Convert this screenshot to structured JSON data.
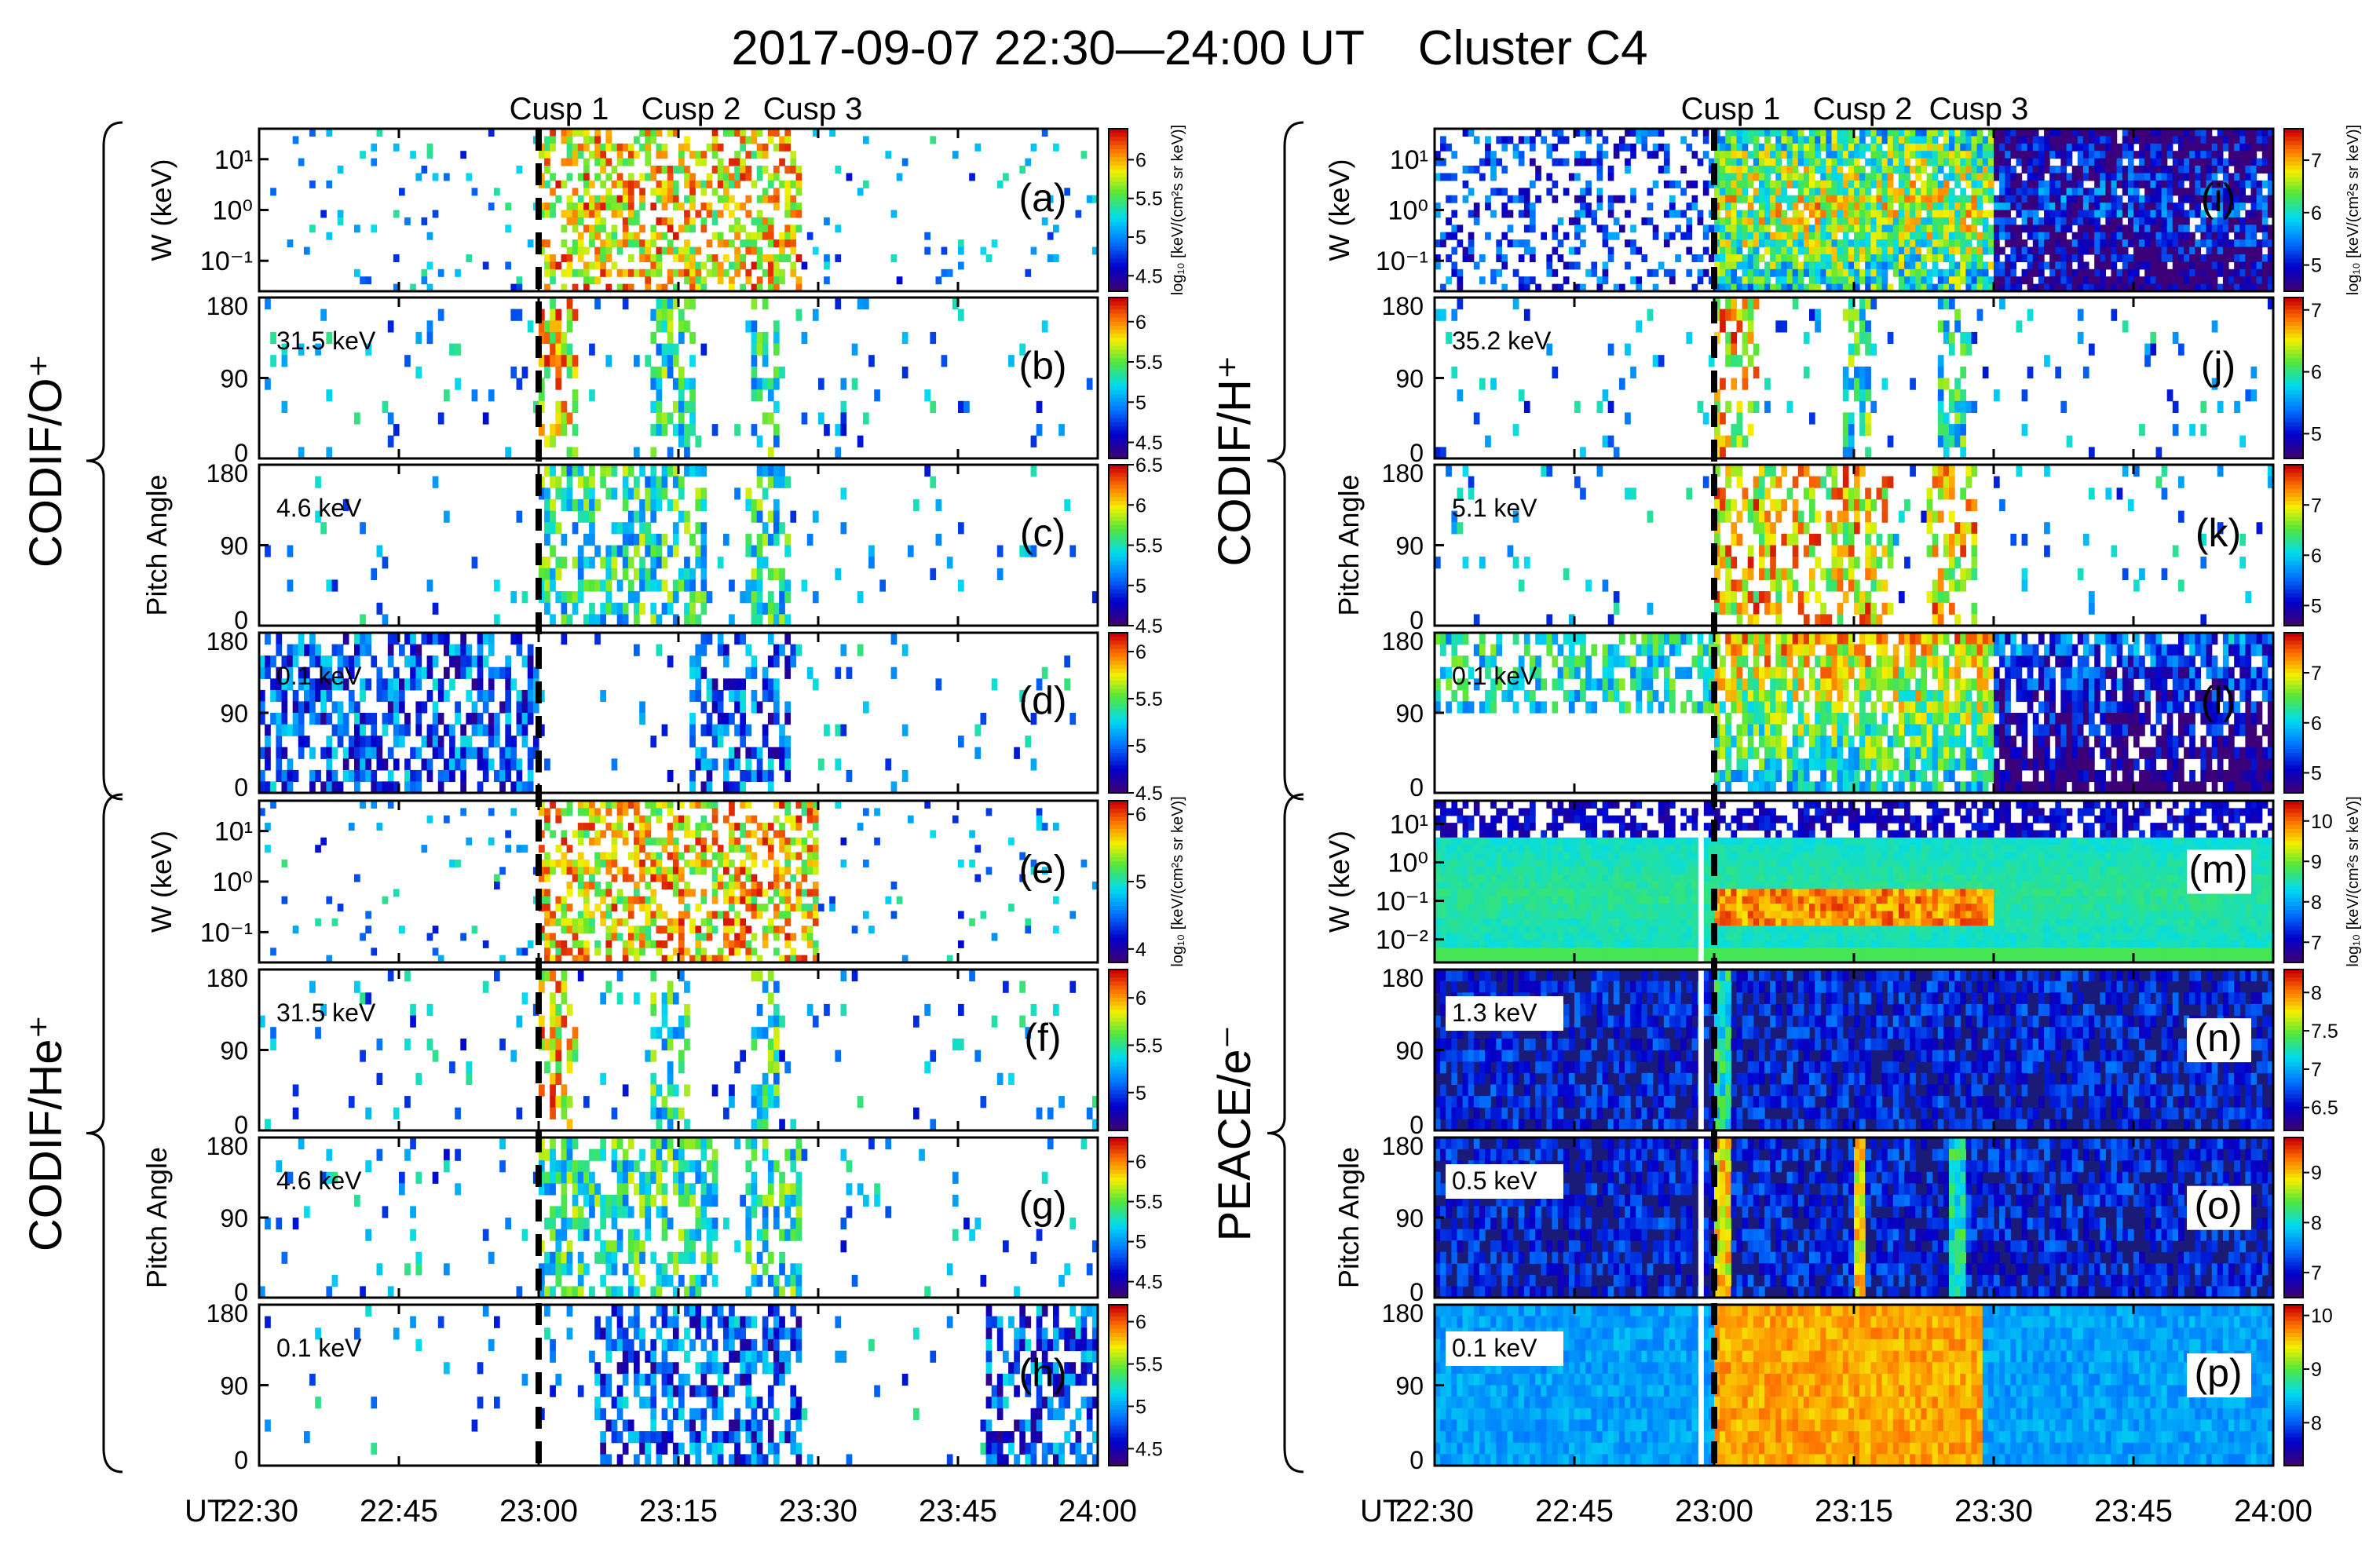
{
  "figure": {
    "title": "2017-09-07 22:30—24:00 UT    Cluster C4",
    "time_axis": {
      "prefix": "UT",
      "ticks": [
        "22:30",
        "22:45",
        "23:00",
        "23:15",
        "23:30",
        "23:45",
        "24:00"
      ],
      "range_minutes": [
        0,
        90
      ]
    },
    "cusps": [
      {
        "label": "Cusp 1",
        "time_minutes": 30,
        "boundary": true
      },
      {
        "label": "Cusp 2",
        "time_minutes": 45
      },
      {
        "label": "Cusp 3",
        "time_minutes": 56
      }
    ],
    "colorbar_label": "log₁₀ [keV/(cm²s sr keV)]",
    "colorbar_label_alt": "log10 [keV/(cm2 s sr keV)]",
    "energy_axis_label": "W (keV)",
    "pitch_axis_label": "Pitch Angle",
    "pa_ticks": [
      "0",
      "90",
      "180"
    ],
    "brackets": [
      {
        "label": "CODIF/O⁺",
        "column": "left",
        "panels": [
          "a",
          "b",
          "c",
          "d"
        ]
      },
      {
        "label": "CODIF/He⁺",
        "column": "left",
        "panels": [
          "e",
          "f",
          "g",
          "h"
        ]
      },
      {
        "label": "CODIF/H⁺",
        "column": "right",
        "panels": [
          "i",
          "j",
          "k",
          "l"
        ]
      },
      {
        "label": "PEACE/e⁻",
        "column": "right",
        "panels": [
          "m",
          "n",
          "o",
          "p"
        ]
      }
    ]
  },
  "chart_data": [
    {
      "type": "heatmap",
      "panel": "(a)",
      "species": "O+",
      "quantity": "energy spectrogram",
      "ylabel": "W (keV)",
      "yticks": [
        "10⁻¹",
        "10⁰",
        "10¹"
      ],
      "colorbar_ticks": [
        "4.5",
        "5",
        "5.5",
        "6"
      ],
      "clim": [
        4.3,
        6.4
      ],
      "bg": "white",
      "texture": "sparse",
      "features": [
        {
          "t": [
            30,
            58
          ],
          "level": "high"
        }
      ]
    },
    {
      "type": "heatmap",
      "panel": "(b)",
      "species": "O+",
      "quantity": "pitch angle distribution",
      "energy_label": "31.5 keV",
      "ylabel": "Pitch Angle",
      "ylim": [
        0,
        180
      ],
      "colorbar_ticks": [
        "4.5",
        "5",
        "5.5",
        "6"
      ],
      "clim": [
        4.3,
        6.3
      ],
      "bg": "white",
      "texture": "sparse",
      "features": [
        {
          "t": [
            30,
            34
          ],
          "level": "high"
        },
        {
          "t": [
            42,
            47
          ],
          "level": "med"
        },
        {
          "t": [
            53,
            56
          ],
          "level": "med"
        }
      ]
    },
    {
      "type": "heatmap",
      "panel": "(c)",
      "species": "O+",
      "quantity": "pitch angle distribution",
      "energy_label": "4.6 keV",
      "ylabel": "Pitch Angle",
      "ylim": [
        0,
        180
      ],
      "colorbar_ticks": [
        "4.5",
        "5",
        "5.5",
        "6",
        "6.5"
      ],
      "clim": [
        4.5,
        6.5
      ],
      "bg": "white",
      "texture": "sparse",
      "features": [
        {
          "t": [
            30,
            48
          ],
          "level": "med"
        },
        {
          "t": [
            52,
            57
          ],
          "level": "med"
        }
      ]
    },
    {
      "type": "heatmap",
      "panel": "(d)",
      "species": "O+",
      "quantity": "pitch angle distribution",
      "energy_label": "0.1 keV",
      "ylabel": "Pitch Angle",
      "ylim": [
        0,
        180
      ],
      "colorbar_ticks": [
        "4.5",
        "5",
        "5.5",
        "6"
      ],
      "clim": [
        4.5,
        6.2
      ],
      "bg": "white",
      "texture": "sparse",
      "features": [
        {
          "t": [
            0,
            30
          ],
          "level": "low"
        },
        {
          "t": [
            46,
            57
          ],
          "level": "low"
        }
      ]
    },
    {
      "type": "heatmap",
      "panel": "(e)",
      "species": "He+",
      "quantity": "energy spectrogram",
      "ylabel": "W (keV)",
      "yticks": [
        "10⁻¹",
        "10⁰",
        "10¹"
      ],
      "colorbar_ticks": [
        "4",
        "5",
        "6"
      ],
      "clim": [
        3.8,
        6.2
      ],
      "bg": "white",
      "texture": "sparse",
      "features": [
        {
          "t": [
            30,
            60
          ],
          "level": "high"
        }
      ]
    },
    {
      "type": "heatmap",
      "panel": "(f)",
      "species": "He+",
      "quantity": "pitch angle distribution",
      "energy_label": "31.5 keV",
      "ylabel": "Pitch Angle",
      "ylim": [
        0,
        180
      ],
      "colorbar_ticks": [
        "5",
        "5.5",
        "6"
      ],
      "clim": [
        4.6,
        6.3
      ],
      "bg": "white",
      "texture": "sparse",
      "features": [
        {
          "t": [
            30,
            34
          ],
          "level": "high"
        },
        {
          "t": [
            42,
            46
          ],
          "level": "med"
        },
        {
          "t": [
            53,
            56
          ],
          "level": "med"
        }
      ]
    },
    {
      "type": "heatmap",
      "panel": "(g)",
      "species": "He+",
      "quantity": "pitch angle distribution",
      "energy_label": "4.6 keV",
      "ylabel": "Pitch Angle",
      "ylim": [
        0,
        180
      ],
      "colorbar_ticks": [
        "4.5",
        "5",
        "5.5",
        "6"
      ],
      "clim": [
        4.3,
        6.3
      ],
      "bg": "white",
      "texture": "sparse",
      "features": [
        {
          "t": [
            30,
            49
          ],
          "level": "med"
        },
        {
          "t": [
            52,
            58
          ],
          "level": "med"
        }
      ]
    },
    {
      "type": "heatmap",
      "panel": "(h)",
      "species": "He+",
      "quantity": "pitch angle distribution",
      "energy_label": "0.1 keV",
      "ylabel": "Pitch Angle",
      "ylim": [
        0,
        180
      ],
      "colorbar_ticks": [
        "4.5",
        "5",
        "5.5",
        "6"
      ],
      "clim": [
        4.3,
        6.2
      ],
      "bg": "white",
      "texture": "sparse",
      "features": [
        {
          "t": [
            36,
            58
          ],
          "level": "low"
        },
        {
          "t": [
            78,
            90
          ],
          "level": "low"
        }
      ]
    },
    {
      "type": "heatmap",
      "panel": "(i)",
      "species": "H+",
      "quantity": "energy spectrogram",
      "ylabel": "W (keV)",
      "yticks": [
        "10⁻¹",
        "10⁰",
        "10¹"
      ],
      "colorbar_ticks": [
        "5",
        "6",
        "7"
      ],
      "clim": [
        4.5,
        7.6
      ],
      "bg": "white",
      "texture": "dense",
      "features": [
        {
          "t": [
            30,
            60
          ],
          "level": "high"
        },
        {
          "t": [
            60,
            90
          ],
          "level": "low"
        }
      ]
    },
    {
      "type": "heatmap",
      "panel": "(j)",
      "species": "H+",
      "quantity": "pitch angle distribution",
      "energy_label": "35.2 keV",
      "ylabel": "Pitch Angle",
      "ylim": [
        0,
        180
      ],
      "colorbar_ticks": [
        "5",
        "6",
        "7"
      ],
      "clim": [
        4.6,
        7.2
      ],
      "bg": "white",
      "texture": "sparse",
      "features": [
        {
          "t": [
            30,
            35
          ],
          "level": "high"
        },
        {
          "t": [
            44,
            47
          ],
          "level": "med"
        },
        {
          "t": [
            54,
            57
          ],
          "level": "med"
        }
      ]
    },
    {
      "type": "heatmap",
      "panel": "(k)",
      "species": "H+",
      "quantity": "pitch angle distribution",
      "energy_label": "5.1 keV",
      "ylabel": "Pitch Angle",
      "ylim": [
        0,
        180
      ],
      "colorbar_ticks": [
        "5",
        "6",
        "7"
      ],
      "clim": [
        4.6,
        7.8
      ],
      "bg": "white",
      "texture": "sparse",
      "features": [
        {
          "t": [
            30,
            49
          ],
          "level": "high"
        },
        {
          "t": [
            53,
            58
          ],
          "level": "high"
        }
      ]
    },
    {
      "type": "heatmap",
      "panel": "(l)",
      "species": "H+",
      "quantity": "pitch angle distribution",
      "energy_label": "0.1 keV",
      "ylabel": "Pitch Angle",
      "ylim": [
        0,
        180
      ],
      "colorbar_ticks": [
        "5",
        "6",
        "7"
      ],
      "clim": [
        4.6,
        7.8
      ],
      "bg": "white",
      "texture": "dense-top",
      "features": [
        {
          "t": [
            30,
            60
          ],
          "level": "high"
        },
        {
          "t": [
            60,
            90
          ],
          "level": "low"
        }
      ]
    },
    {
      "type": "heatmap",
      "panel": "(m)",
      "species": "e-",
      "quantity": "energy spectrogram",
      "ylabel": "W (keV)",
      "yticks": [
        "10⁻²",
        "10⁻¹",
        "10⁰",
        "10¹"
      ],
      "colorbar_ticks": [
        "7",
        "8",
        "9",
        "10"
      ],
      "clim": [
        6.5,
        10.5
      ],
      "bg": "cyan-band",
      "texture": "full",
      "features": [
        {
          "t": [
            30,
            60
          ],
          "level": "high",
          "note": "red band near 0.1 keV"
        }
      ]
    },
    {
      "type": "heatmap",
      "panel": "(n)",
      "species": "e-",
      "quantity": "pitch angle distribution",
      "energy_label": "1.3 keV",
      "ylabel": "Pitch Angle",
      "ylim": [
        0,
        180
      ],
      "colorbar_ticks": [
        "6.5",
        "7",
        "7.5",
        "8"
      ],
      "clim": [
        6.2,
        8.3
      ],
      "bg": "navy",
      "texture": "streaky",
      "features": [
        {
          "t": [
            30,
            32
          ],
          "level": "med"
        }
      ]
    },
    {
      "type": "heatmap",
      "panel": "(o)",
      "species": "e-",
      "quantity": "pitch angle distribution",
      "energy_label": "0.5 keV",
      "ylabel": "Pitch Angle",
      "ylim": [
        0,
        180
      ],
      "colorbar_ticks": [
        "7",
        "8",
        "9"
      ],
      "clim": [
        6.5,
        9.7
      ],
      "bg": "navy",
      "texture": "streaky",
      "features": [
        {
          "t": [
            30,
            32
          ],
          "level": "high"
        },
        {
          "t": [
            45,
            46.5
          ],
          "level": "high"
        },
        {
          "t": [
            55.5,
            57
          ],
          "level": "med"
        }
      ]
    },
    {
      "type": "heatmap",
      "panel": "(p)",
      "species": "e-",
      "quantity": "pitch angle distribution",
      "energy_label": "0.1 keV",
      "ylabel": "Pitch Angle",
      "ylim": [
        0,
        180
      ],
      "colorbar_ticks": [
        "8",
        "9",
        "10"
      ],
      "clim": [
        7.2,
        10.2
      ],
      "bg": "blue",
      "texture": "smooth",
      "features": [
        {
          "t": [
            30,
            59
          ],
          "level": "high"
        }
      ]
    }
  ]
}
